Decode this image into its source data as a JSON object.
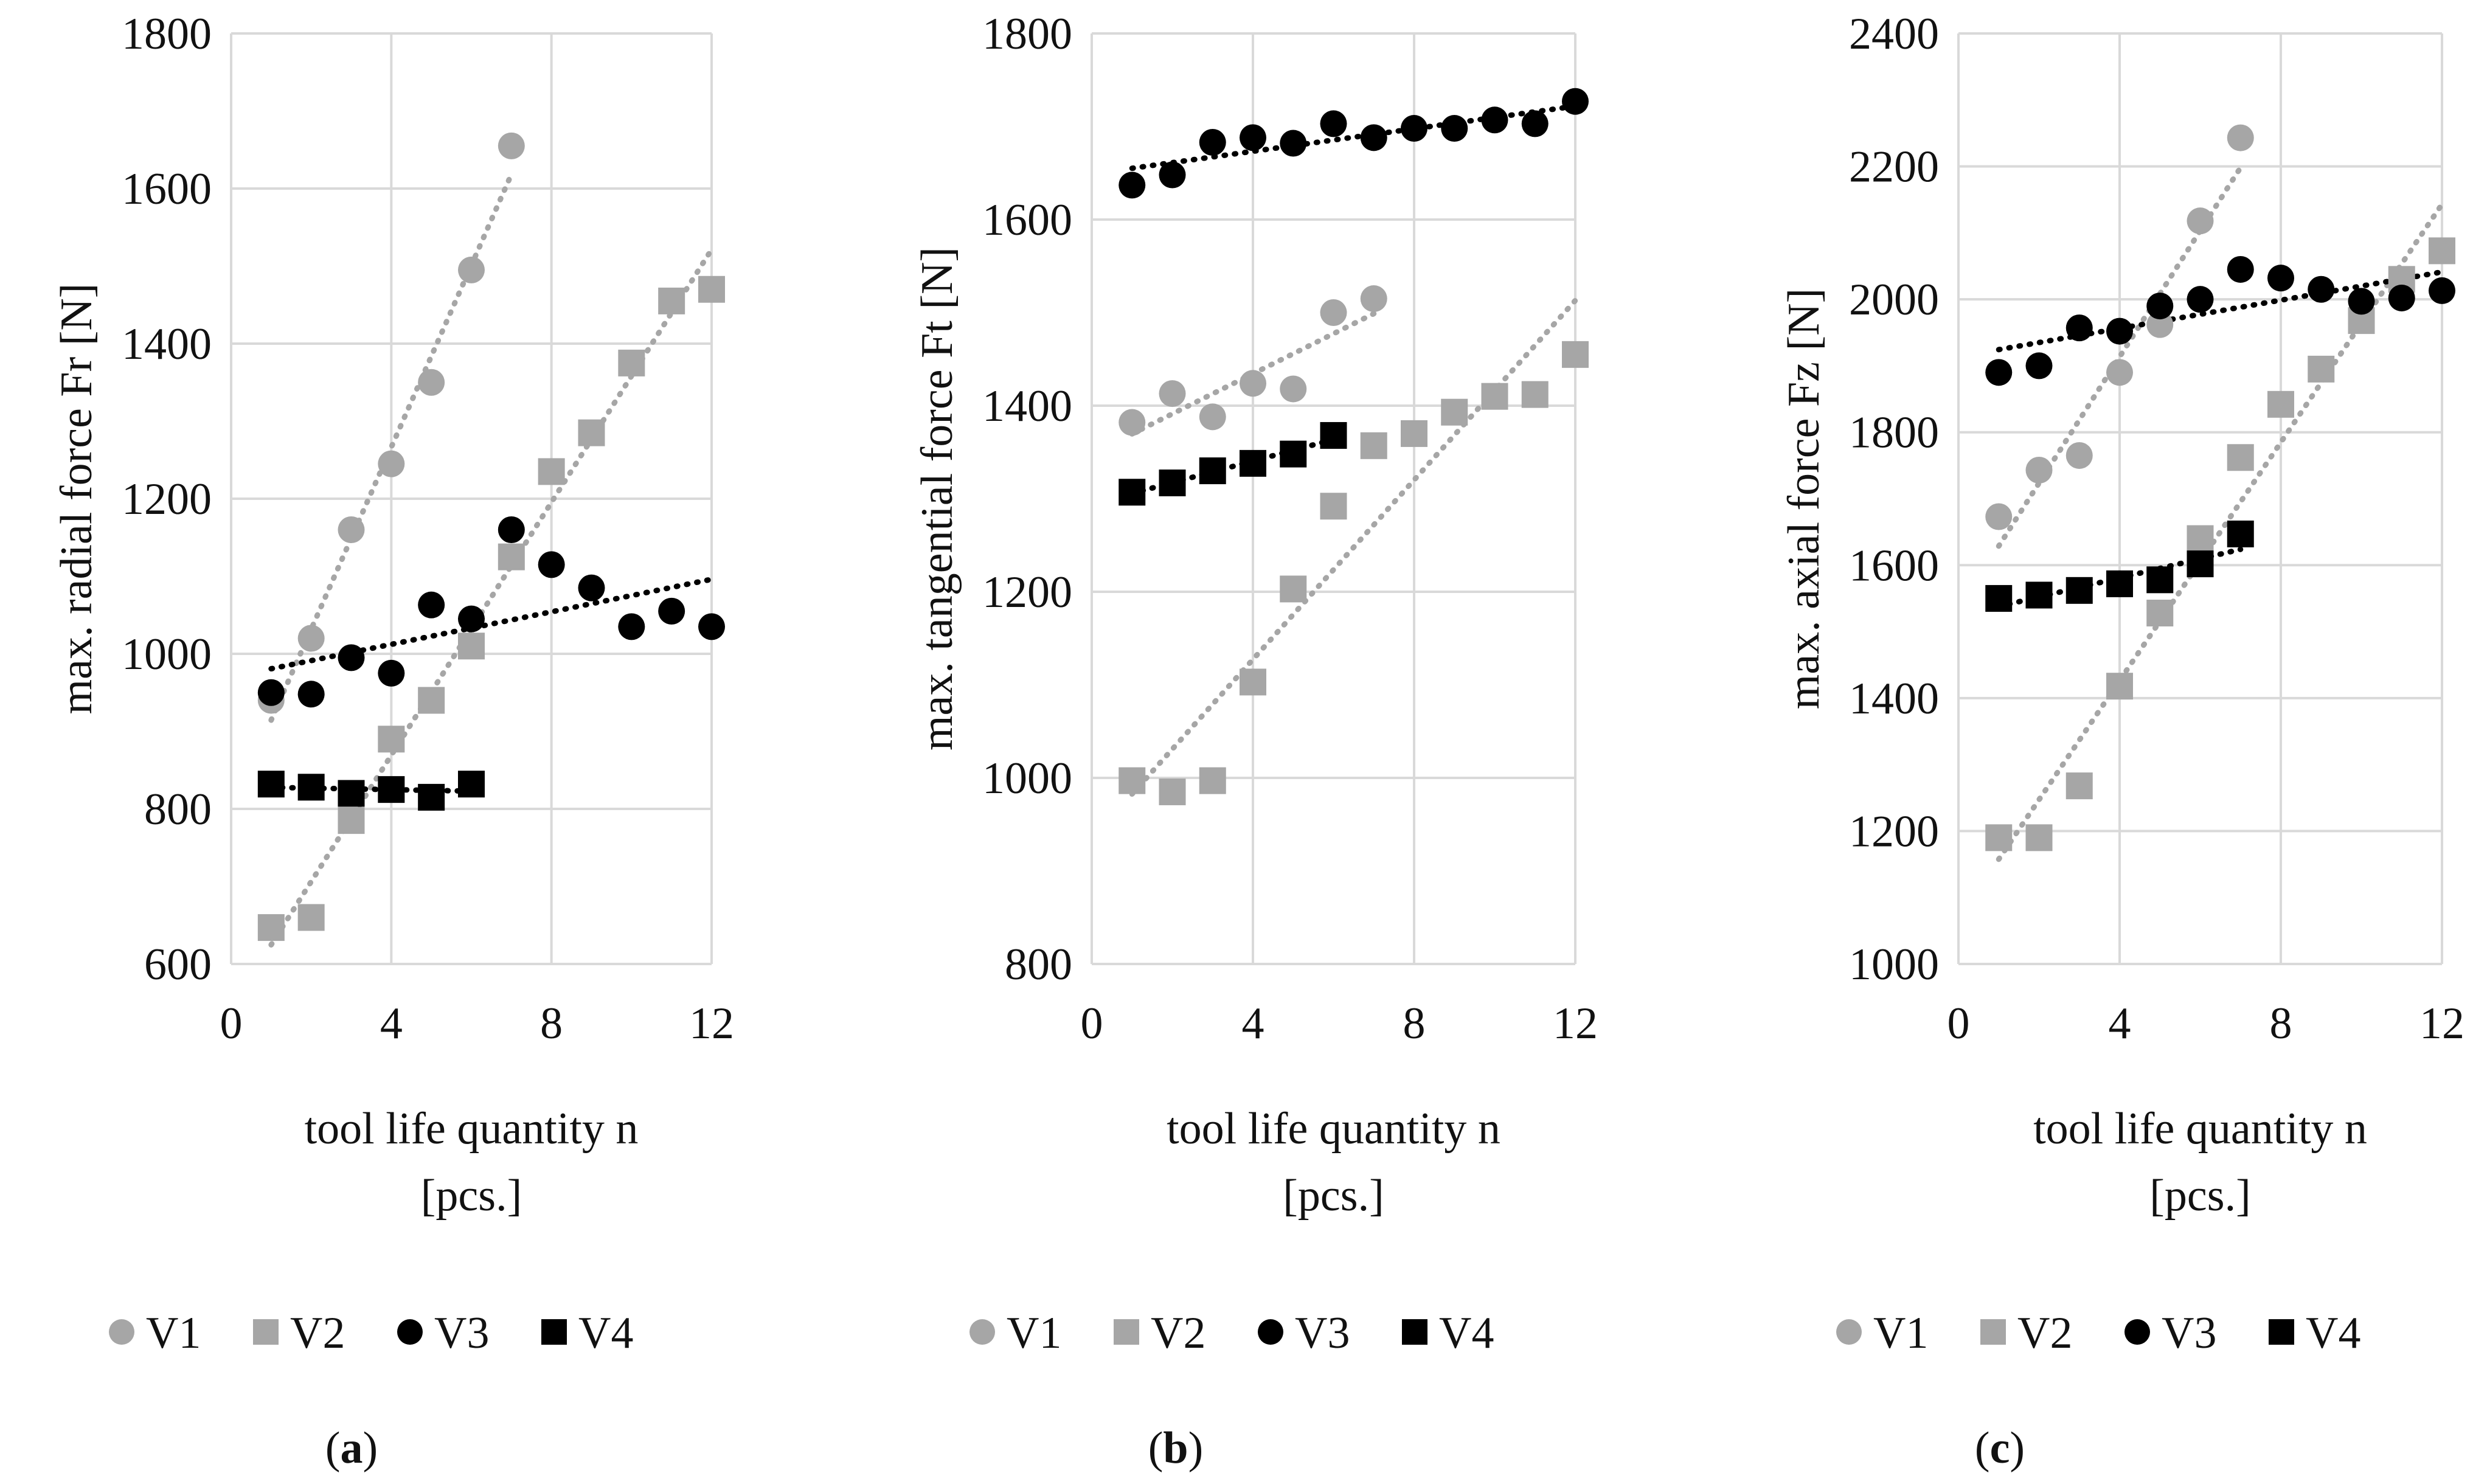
{
  "chart_data": [
    {
      "type": "scatter",
      "panel_label": "a",
      "ylabel": "max. radial force Fr [N]",
      "xlabel_line1": "tool life quantity n",
      "xlabel_line2": "[pcs.]",
      "xlim": [
        0,
        12
      ],
      "ylim": [
        600,
        1800
      ],
      "xticks": [
        0,
        4,
        8,
        12
      ],
      "yticks": [
        600,
        800,
        1000,
        1200,
        1400,
        1600,
        1800
      ],
      "grid": true,
      "legend_position": "bottom",
      "trendline": "linear, dotted",
      "series": [
        {
          "name": "V1",
          "marker": "circle",
          "color": "#a6a6a6",
          "x": [
            1,
            2,
            3,
            4,
            5,
            6,
            7
          ],
          "y": [
            940,
            1020,
            1160,
            1245,
            1350,
            1495,
            1655
          ]
        },
        {
          "name": "V2",
          "marker": "square",
          "color": "#a6a6a6",
          "x": [
            1,
            2,
            3,
            4,
            5,
            6,
            7,
            8,
            9,
            10,
            11,
            12
          ],
          "y": [
            647,
            660,
            785,
            890,
            940,
            1010,
            1125,
            1235,
            1285,
            1375,
            1455,
            1470
          ]
        },
        {
          "name": "V3",
          "marker": "circle",
          "color": "#000000",
          "x": [
            1,
            2,
            3,
            4,
            5,
            6,
            7,
            8,
            9,
            10,
            11,
            12
          ],
          "y": [
            950,
            948,
            995,
            975,
            1063,
            1045,
            1160,
            1115,
            1085,
            1035,
            1055,
            1035
          ]
        },
        {
          "name": "V4",
          "marker": "square",
          "color": "#000000",
          "x": [
            1,
            2,
            3,
            4,
            5,
            6
          ],
          "y": [
            832,
            828,
            820,
            825,
            815,
            832
          ]
        }
      ]
    },
    {
      "type": "scatter",
      "panel_label": "b",
      "ylabel": "max. tangential force Ft [N]",
      "xlabel_line1": "tool life quantity n",
      "xlabel_line2": "[pcs.]",
      "xlim": [
        0,
        12
      ],
      "ylim": [
        800,
        1800
      ],
      "xticks": [
        0,
        4,
        8,
        12
      ],
      "yticks": [
        800,
        1000,
        1200,
        1400,
        1600,
        1800
      ],
      "grid": true,
      "legend_position": "bottom",
      "trendline": "linear, dotted",
      "series": [
        {
          "name": "V1",
          "marker": "circle",
          "color": "#a6a6a6",
          "x": [
            1,
            2,
            3,
            4,
            5,
            6,
            7
          ],
          "y": [
            1382,
            1413,
            1388,
            1424,
            1418,
            1500,
            1515
          ]
        },
        {
          "name": "V2",
          "marker": "square",
          "color": "#a6a6a6",
          "x": [
            1,
            2,
            3,
            4,
            5,
            6,
            7,
            8,
            9,
            10,
            11,
            12
          ],
          "y": [
            997,
            985,
            997,
            1103,
            1203,
            1292,
            1357,
            1370,
            1393,
            1410,
            1412,
            1455
          ]
        },
        {
          "name": "V3",
          "marker": "circle",
          "color": "#000000",
          "x": [
            1,
            2,
            3,
            4,
            5,
            6,
            7,
            8,
            9,
            10,
            11,
            12
          ],
          "y": [
            1637,
            1648,
            1683,
            1688,
            1682,
            1703,
            1688,
            1698,
            1698,
            1707,
            1703,
            1727
          ]
        },
        {
          "name": "V4",
          "marker": "square",
          "color": "#000000",
          "x": [
            1,
            2,
            3,
            4,
            5,
            6
          ],
          "y": [
            1307,
            1317,
            1330,
            1338,
            1348,
            1368
          ]
        }
      ]
    },
    {
      "type": "scatter",
      "panel_label": "c",
      "ylabel": "max. axial force Fz [N]",
      "xlabel_line1": "tool life quantity n",
      "xlabel_line2": "[pcs.]",
      "xlim": [
        0,
        12
      ],
      "ylim": [
        1000,
        2400
      ],
      "xticks": [
        0,
        4,
        8,
        12
      ],
      "yticks": [
        1000,
        1200,
        1400,
        1600,
        1800,
        2000,
        2200,
        2400
      ],
      "grid": true,
      "legend_position": "bottom",
      "trendline": "linear, dotted",
      "series": [
        {
          "name": "V1",
          "marker": "circle",
          "color": "#a6a6a6",
          "x": [
            1,
            2,
            3,
            4,
            5,
            6,
            7
          ],
          "y": [
            1673,
            1743,
            1765,
            1890,
            1962,
            2118,
            2243
          ]
        },
        {
          "name": "V2",
          "marker": "square",
          "color": "#a6a6a6",
          "x": [
            1,
            2,
            3,
            4,
            5,
            6,
            7,
            8,
            9,
            10,
            11,
            12
          ],
          "y": [
            1190,
            1190,
            1268,
            1418,
            1528,
            1640,
            1762,
            1842,
            1895,
            1968,
            2030,
            2073
          ]
        },
        {
          "name": "V3",
          "marker": "circle",
          "color": "#000000",
          "x": [
            1,
            2,
            3,
            4,
            5,
            6,
            7,
            8,
            9,
            10,
            11,
            12
          ],
          "y": [
            1890,
            1900,
            1957,
            1952,
            1990,
            2000,
            2045,
            2032,
            2015,
            1997,
            2002,
            2013
          ]
        },
        {
          "name": "V4",
          "marker": "square",
          "color": "#000000",
          "x": [
            1,
            2,
            3,
            4,
            5,
            6,
            7
          ],
          "y": [
            1550,
            1555,
            1562,
            1572,
            1578,
            1602,
            1647
          ]
        }
      ]
    }
  ]
}
